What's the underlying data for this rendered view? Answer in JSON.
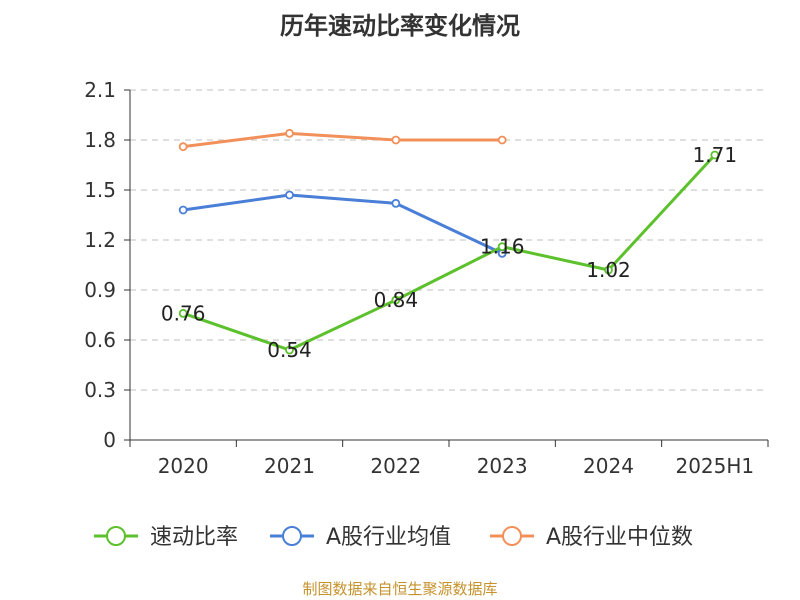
{
  "chart_data": {
    "type": "line",
    "title": "历年速动比率变化情况",
    "categories": [
      "2020",
      "2021",
      "2022",
      "2023",
      "2024",
      "2025H1"
    ],
    "yticks": [
      "0",
      "0.3",
      "0.6",
      "0.9",
      "1.2",
      "1.5",
      "1.8",
      "2.1"
    ],
    "ylim": [
      0,
      2.1
    ],
    "grid": true,
    "legend_position": "bottom",
    "series": [
      {
        "name": "速动比率",
        "color": "#5cc12c",
        "values": [
          0.76,
          0.54,
          0.84,
          1.16,
          1.02,
          1.71
        ],
        "labels": [
          "0.76",
          "0.54",
          "0.84",
          "1.16",
          "1.02",
          "1.71"
        ]
      },
      {
        "name": "A股行业均值",
        "color": "#4a7fd8",
        "values": [
          1.38,
          1.47,
          1.42,
          1.12,
          null,
          null
        ]
      },
      {
        "name": "A股行业中位数",
        "color": "#f2905a",
        "values": [
          1.76,
          1.84,
          1.8,
          1.8,
          null,
          null
        ]
      }
    ]
  },
  "footer": "制图数据来自恒生聚源数据库"
}
